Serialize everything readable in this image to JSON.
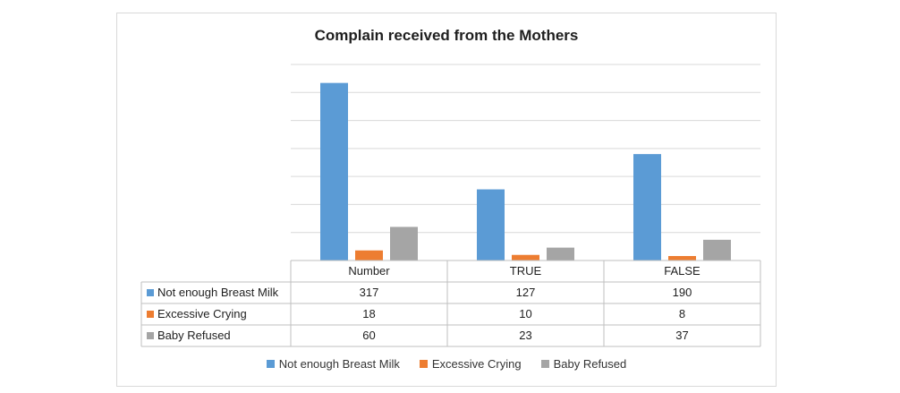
{
  "chart_data": {
    "type": "bar",
    "title": "Complain received from the Mothers",
    "categories": [
      "Number",
      "TRUE",
      "FALSE"
    ],
    "series": [
      {
        "name": "Not enough Breast Milk",
        "values": [
          317,
          127,
          190
        ],
        "color": "#5b9bd5"
      },
      {
        "name": "Excessive Crying",
        "values": [
          18,
          10,
          8
        ],
        "color": "#ed7d31"
      },
      {
        "name": "Baby Refused",
        "values": [
          60,
          23,
          37
        ],
        "color": "#a5a5a5"
      }
    ],
    "ylim": [
      0,
      350
    ],
    "grid": true,
    "legend": "bottom",
    "data_table": true
  }
}
